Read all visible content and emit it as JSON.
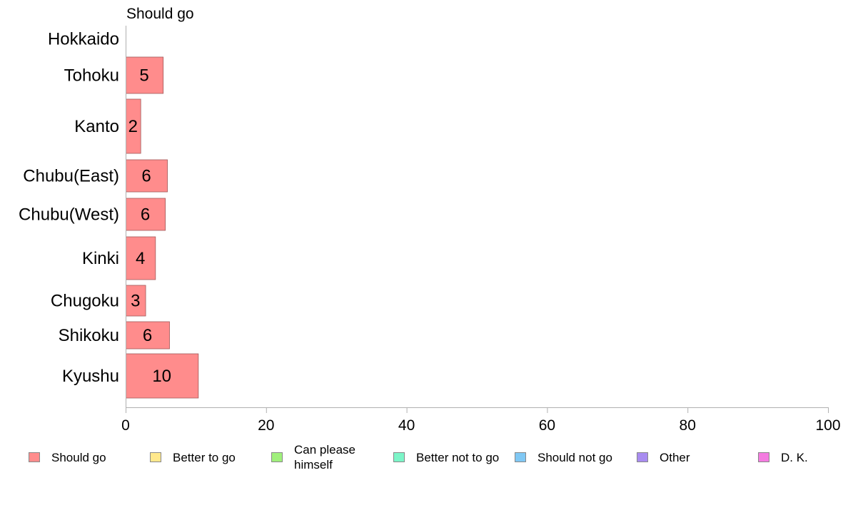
{
  "chart_data": {
    "type": "bar",
    "orientation": "horizontal",
    "title": "Should go",
    "categories": [
      "Hokkaido",
      "Tohoku",
      "Kanto",
      "Chubu(East)",
      "Chubu(West)",
      "Kinki",
      "Chugoku",
      "Shikoku",
      "Kyushu"
    ],
    "series": [
      {
        "name": "Should go",
        "color": "#ff8c8c",
        "values": [
          0,
          5.3,
          2.1,
          5.9,
          5.6,
          4.2,
          2.8,
          6.2,
          10.3
        ],
        "labels": [
          "",
          "5",
          "2",
          "6",
          "6",
          "4",
          "3",
          "6",
          "10"
        ]
      }
    ],
    "xlim": [
      0,
      100
    ],
    "xticks": [
      "0",
      "20",
      "40",
      "60",
      "80",
      "100"
    ],
    "grid": false,
    "legend_position": "bottom",
    "legend": [
      {
        "label": "Should go",
        "color": "#ff8c8c"
      },
      {
        "label": "Better to go",
        "color": "#ffe88c"
      },
      {
        "label": "Can please himself",
        "color": "#a0f07c"
      },
      {
        "label": "Better not to go",
        "color": "#7cf5c8"
      },
      {
        "label": "Should not go",
        "color": "#80c8f4"
      },
      {
        "label": "Other",
        "color": "#a88cf0"
      },
      {
        "label": "D. K.",
        "color": "#f47ce0"
      }
    ]
  }
}
